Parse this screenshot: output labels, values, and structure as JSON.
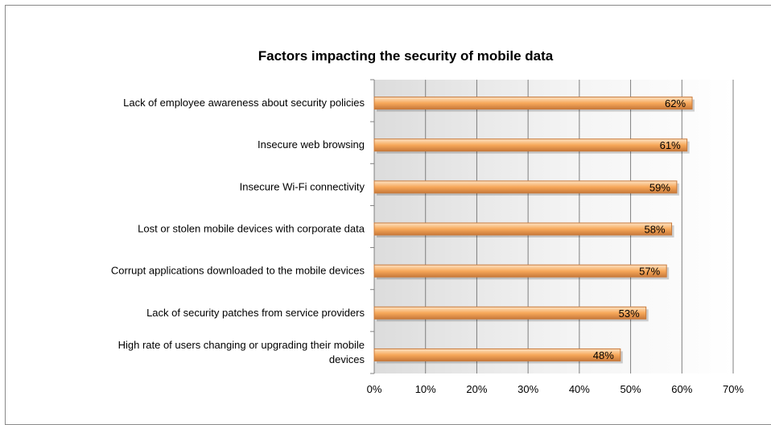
{
  "chart_data": {
    "type": "bar",
    "orientation": "horizontal",
    "title": "Factors impacting the security of mobile data",
    "categories": [
      "Lack of employee awareness about security policies",
      "Insecure web browsing",
      "Insecure Wi-Fi connectivity",
      "Lost or stolen mobile devices with corporate data",
      "Corrupt applications downloaded to the mobile devices",
      "Lack of security patches from service providers",
      "High rate of users changing or upgrading their mobile devices"
    ],
    "category_lines": [
      [
        "Lack of employee awareness about security policies"
      ],
      [
        "Insecure web browsing"
      ],
      [
        "Insecure Wi-Fi connectivity"
      ],
      [
        "Lost or stolen mobile devices with corporate data"
      ],
      [
        "Corrupt applications downloaded to the mobile devices"
      ],
      [
        "Lack of security patches from service providers"
      ],
      [
        "High rate of users changing or upgrading their mobile",
        "devices"
      ]
    ],
    "values": [
      62,
      61,
      59,
      58,
      57,
      53,
      48
    ],
    "value_labels": [
      "62%",
      "61%",
      "59%",
      "58%",
      "57%",
      "53%",
      "48%"
    ],
    "xlim": [
      0,
      70
    ],
    "x_ticks": [
      "0%",
      "10%",
      "20%",
      "30%",
      "40%",
      "50%",
      "60%",
      "70%"
    ],
    "grid": true,
    "bar_color": "#f7a85a",
    "bar_highlight_color": "#fde3c4",
    "bar_border_color": "#c8793a",
    "xlabel": "",
    "ylabel": ""
  }
}
